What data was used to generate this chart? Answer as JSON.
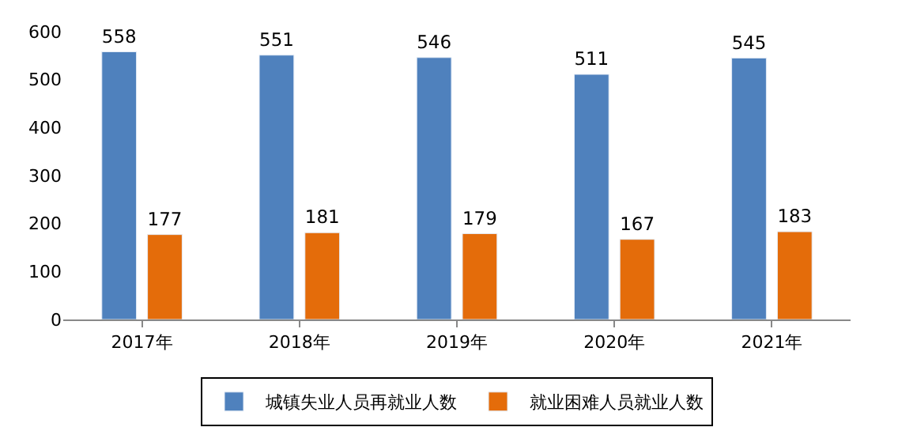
{
  "chart_data": {
    "type": "bar",
    "categories": [
      "2017年",
      "2018年",
      "2019年",
      "2020年",
      "2021年"
    ],
    "series": [
      {
        "name": "城镇失业人员再就业人数",
        "color": "#4f81bd",
        "values": [
          558,
          551,
          546,
          511,
          545
        ]
      },
      {
        "name": "就业困难人员就业人数",
        "color": "#e46c0a",
        "values": [
          177,
          181,
          179,
          167,
          183
        ]
      }
    ],
    "ylim": [
      0,
      600
    ],
    "yticks": [
      0,
      100,
      200,
      300,
      400,
      500,
      600
    ],
    "legend": "bottom",
    "data_labels": true
  }
}
